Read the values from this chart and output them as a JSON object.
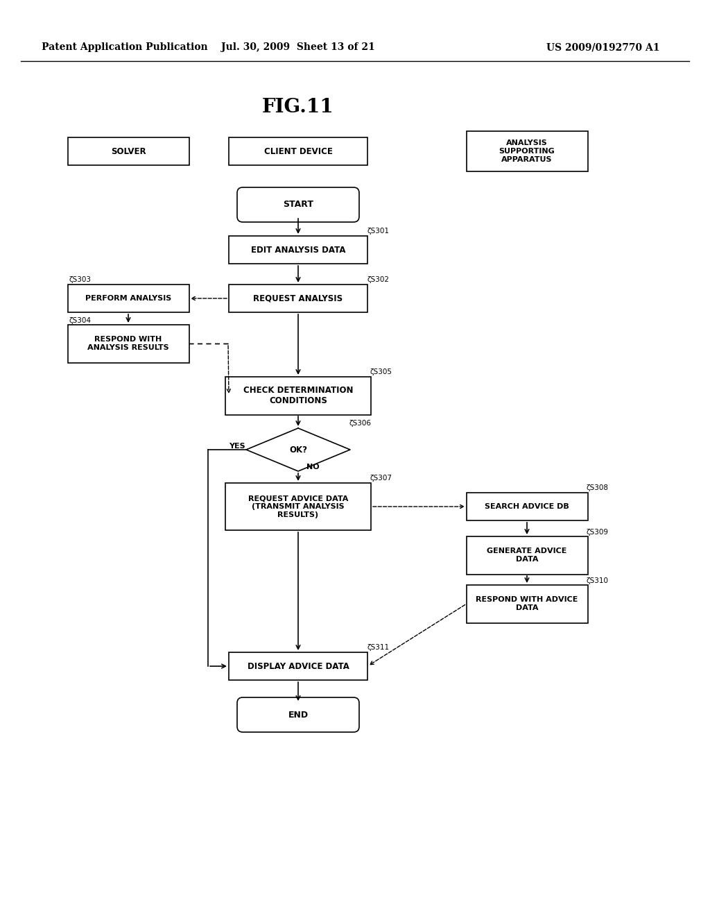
{
  "title": "FIG.11",
  "header_left": "Patent Application Publication",
  "header_mid": "Jul. 30, 2009  Sheet 13 of 21",
  "header_right": "US 2009/0192770 A1",
  "bg_color": "#ffffff",
  "lc": "#000000",
  "tc": "#000000",
  "fig_w": 10.24,
  "fig_h": 13.2,
  "dpi": 100
}
